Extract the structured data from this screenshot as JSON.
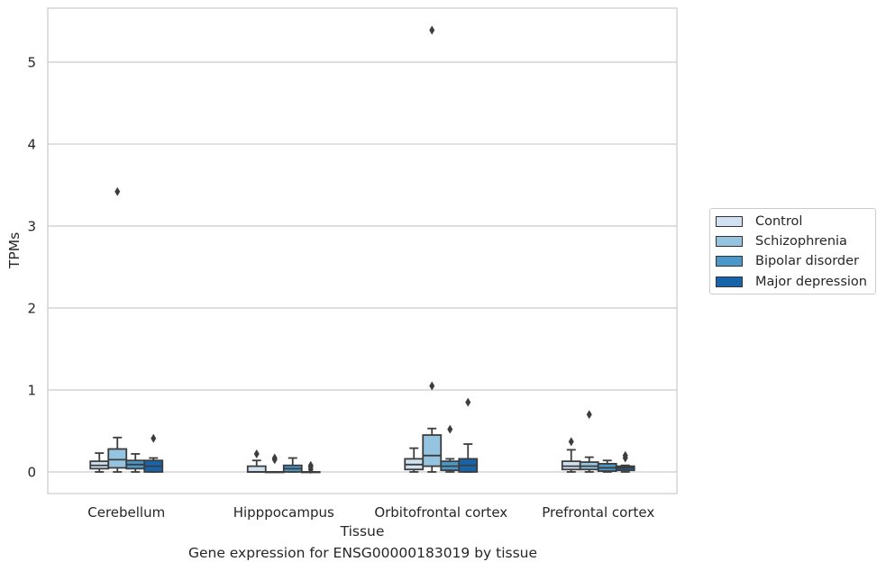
{
  "chart_data": {
    "type": "box",
    "title": "",
    "caption": "Gene expression for ENSG00000183019 by tissue",
    "xlabel": "Tissue",
    "ylabel": "TPMs",
    "ylim": [
      -0.27,
      5.65
    ],
    "yticks": [
      0,
      1,
      2,
      3,
      4,
      5
    ],
    "grid": true,
    "legend_position": "right",
    "categories": [
      "Cerebellum",
      "Hipppocampus",
      "Orbitofrontal cortex",
      "Prefrontal cortex"
    ],
    "series": [
      {
        "name": "Control",
        "color": "#d0e1f2",
        "boxes": [
          {
            "min": 0.0,
            "q1": 0.04,
            "median": 0.08,
            "q3": 0.13,
            "max": 0.23,
            "outliers": []
          },
          {
            "min": 0.0,
            "q1": 0.0,
            "median": 0.0,
            "q3": 0.07,
            "max": 0.14,
            "outliers": [
              0.22
            ]
          },
          {
            "min": 0.0,
            "q1": 0.03,
            "median": 0.09,
            "q3": 0.16,
            "max": 0.29,
            "outliers": []
          },
          {
            "min": 0.0,
            "q1": 0.03,
            "median": 0.07,
            "q3": 0.13,
            "max": 0.27,
            "outliers": [
              0.37
            ]
          }
        ]
      },
      {
        "name": "Schizophrenia",
        "color": "#94c4df",
        "boxes": [
          {
            "min": 0.0,
            "q1": 0.05,
            "median": 0.15,
            "q3": 0.28,
            "max": 0.42,
            "outliers": [
              3.42
            ]
          },
          {
            "min": 0.0,
            "q1": 0.0,
            "median": 0.0,
            "q3": 0.0,
            "max": 0.0,
            "outliers": [
              0.17,
              0.15
            ]
          },
          {
            "min": 0.0,
            "q1": 0.07,
            "median": 0.2,
            "q3": 0.45,
            "max": 0.53,
            "outliers": [
              1.05,
              5.39
            ]
          },
          {
            "min": 0.0,
            "q1": 0.03,
            "median": 0.07,
            "q3": 0.12,
            "max": 0.18,
            "outliers": [
              0.7
            ]
          }
        ]
      },
      {
        "name": "Bipolar disorder",
        "color": "#4a98c9",
        "boxes": [
          {
            "min": 0.0,
            "q1": 0.04,
            "median": 0.09,
            "q3": 0.14,
            "max": 0.22,
            "outliers": []
          },
          {
            "min": 0.0,
            "q1": 0.0,
            "median": 0.04,
            "q3": 0.08,
            "max": 0.17,
            "outliers": []
          },
          {
            "min": 0.0,
            "q1": 0.02,
            "median": 0.07,
            "q3": 0.13,
            "max": 0.16,
            "outliers": [
              0.52
            ]
          },
          {
            "min": 0.0,
            "q1": 0.01,
            "median": 0.05,
            "q3": 0.1,
            "max": 0.14,
            "outliers": []
          }
        ]
      },
      {
        "name": "Major depression",
        "color": "#1764ab",
        "boxes": [
          {
            "min": 0.0,
            "q1": 0.0,
            "median": 0.07,
            "q3": 0.14,
            "max": 0.17,
            "outliers": [
              0.41
            ]
          },
          {
            "min": 0.0,
            "q1": 0.0,
            "median": 0.0,
            "q3": 0.0,
            "max": 0.0,
            "outliers": [
              0.08,
              0.06,
              0.03
            ]
          },
          {
            "min": 0.0,
            "q1": 0.0,
            "median": 0.08,
            "q3": 0.16,
            "max": 0.34,
            "outliers": [
              0.85
            ]
          },
          {
            "min": 0.0,
            "q1": 0.02,
            "median": 0.05,
            "q3": 0.07,
            "max": 0.08,
            "outliers": [
              0.2,
              0.17
            ]
          }
        ]
      }
    ]
  }
}
